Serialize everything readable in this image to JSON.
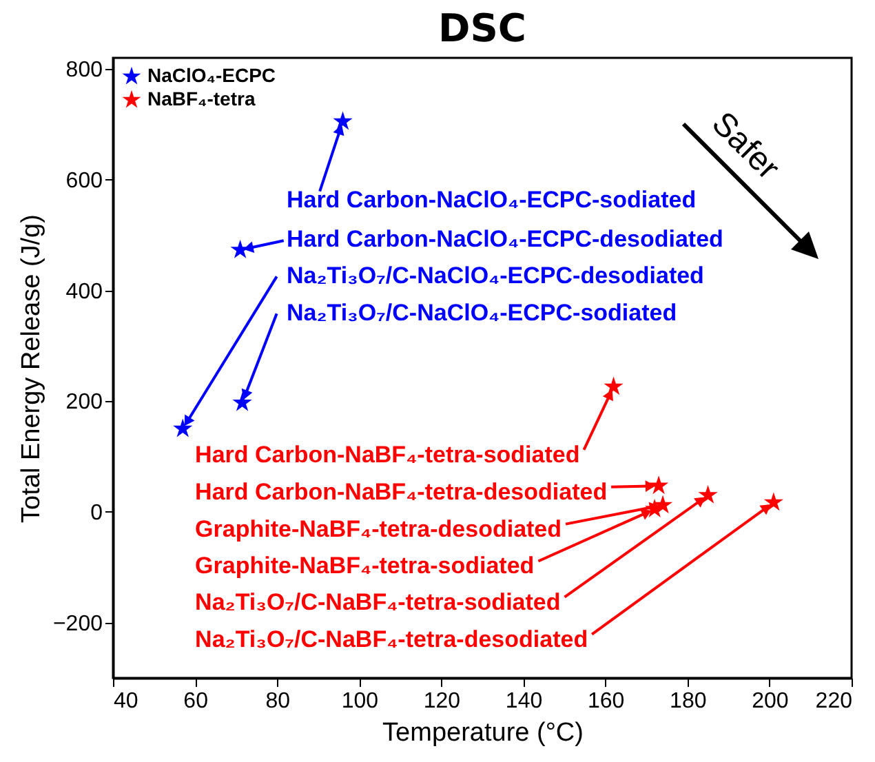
{
  "chart_data": {
    "type": "scatter",
    "title": "DSC",
    "xlabel": "Temperature (°C)",
    "ylabel": "Total Energy Release (J/g)",
    "xlim": [
      40,
      220
    ],
    "xticks": [
      40,
      60,
      80,
      100,
      120,
      140,
      160,
      180,
      200,
      220
    ],
    "ylim": [
      -300,
      820
    ],
    "yticks": [
      -200,
      0,
      200,
      400,
      600,
      800
    ],
    "grid": false,
    "legend": "top left",
    "marker": "star",
    "series": [
      {
        "name": "NaClO₄-ECPC",
        "color": "#0000ff",
        "x": [
          96,
          71,
          57,
          71.5
        ],
        "values": [
          705,
          473,
          150,
          197
        ]
      },
      {
        "name": "NaBF₄-tetra",
        "color": "#ff0000",
        "x": [
          162,
          173,
          174,
          172,
          185,
          201
        ],
        "values": [
          226,
          47,
          12,
          5,
          30,
          17
        ]
      }
    ],
    "annotations": [
      {
        "text": "Hard Carbon-NaClO₄-ECPC-sodiated",
        "x": 96,
        "y": 705
      },
      {
        "text": "Hard Carbon-NaClO₄-ECPC-desodiated",
        "x": 71,
        "y": 473
      },
      {
        "text": "Na₂Ti₃O₇/C-NaClO₄-ECPC-desodiated",
        "x": 57,
        "y": 150
      },
      {
        "text": "Na₂Ti₃O₇/C-NaClO₄-ECPC-sodiated",
        "x": 71.5,
        "y": 197
      },
      {
        "text": "Hard Carbon-NaBF₄-tetra-sodiated",
        "x": 162,
        "y": 226
      },
      {
        "text": "Hard Carbon-NaBF₄-tetra-desodiated",
        "x": 173,
        "y": 47
      },
      {
        "text": "Graphite-NaBF₄-tetra-desodiated",
        "x": 174,
        "y": 12
      },
      {
        "text": "Graphite-NaBF₄-tetra-sodiated",
        "x": 172,
        "y": 5
      },
      {
        "text": "Na₂Ti₃O₇/C-NaBF₄-tetra-sodiated",
        "x": 185,
        "y": 30
      },
      {
        "text": "Na₂Ti₃O₇/C-NaBF₄-tetra-desodiated",
        "x": 201,
        "y": 17
      },
      "Safer"
    ]
  }
}
